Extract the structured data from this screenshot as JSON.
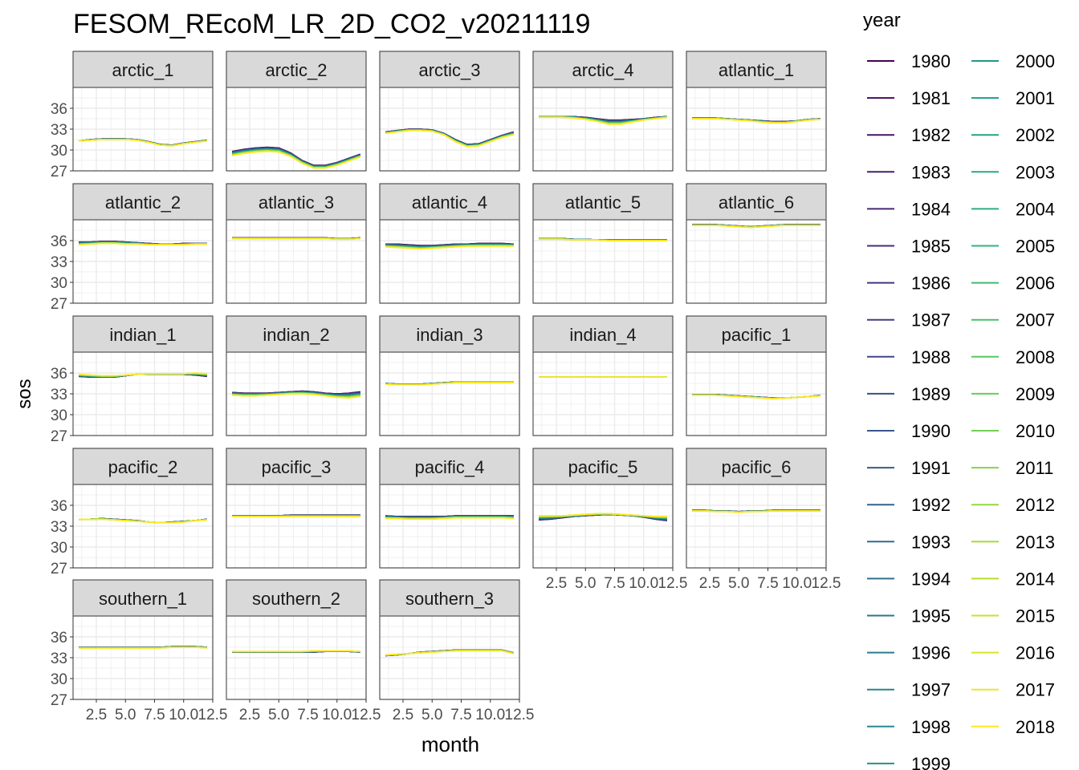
{
  "chart_data": {
    "type": "line",
    "title": "FESOM_REcoM_LR_2D_CO2_v20211119",
    "xlabel": "month",
    "ylabel": "sos",
    "xlim": [
      1,
      12
    ],
    "ylim": [
      27,
      39
    ],
    "x_ticks": [
      "2.5",
      "5.0",
      "7.5",
      "10.0",
      "12.5"
    ],
    "y_ticks": [
      "27",
      "30",
      "33",
      "36"
    ],
    "grid": true,
    "legend": {
      "title": "year",
      "placement": "right",
      "columns": 2,
      "entries": [
        "1980",
        "1981",
        "1982",
        "1983",
        "1984",
        "1985",
        "1986",
        "1987",
        "1988",
        "1989",
        "1990",
        "1991",
        "1992",
        "1993",
        "1994",
        "1995",
        "1996",
        "1997",
        "1998",
        "1999",
        "2000",
        "2001",
        "2002",
        "2003",
        "2004",
        "2005",
        "2006",
        "2007",
        "2008",
        "2009",
        "2010",
        "2011",
        "2012",
        "2013",
        "2014",
        "2015",
        "2016",
        "2017",
        "2018"
      ]
    },
    "colormap": [
      "#440154",
      "#482878",
      "#3e4a89",
      "#31688e",
      "#26828e",
      "#1f9e89",
      "#35b779",
      "#6ece58",
      "#b5de2b",
      "#fde725"
    ],
    "x": [
      1,
      2,
      3,
      4,
      5,
      6,
      7,
      8,
      9,
      10,
      11,
      12
    ],
    "panels": [
      {
        "name": "arctic_1",
        "first_year": [
          31.3,
          31.5,
          31.6,
          31.6,
          31.6,
          31.5,
          31.2,
          30.8,
          30.7,
          31.0,
          31.2,
          31.4
        ],
        "last_year": [
          31.3,
          31.4,
          31.5,
          31.5,
          31.5,
          31.4,
          31.1,
          30.7,
          30.6,
          30.9,
          31.1,
          31.3
        ]
      },
      {
        "name": "arctic_2",
        "first_year": [
          29.8,
          30.1,
          30.3,
          30.4,
          30.3,
          29.6,
          28.5,
          27.8,
          27.8,
          28.2,
          28.8,
          29.4
        ],
        "last_year": [
          29.2,
          29.5,
          29.7,
          29.8,
          29.7,
          29.1,
          28.1,
          27.4,
          27.4,
          27.8,
          28.4,
          29.0
        ]
      },
      {
        "name": "arctic_3",
        "first_year": [
          32.6,
          32.8,
          33.0,
          33.0,
          32.9,
          32.4,
          31.5,
          30.8,
          30.9,
          31.5,
          32.1,
          32.6
        ],
        "last_year": [
          32.4,
          32.6,
          32.8,
          32.8,
          32.7,
          32.2,
          31.2,
          30.5,
          30.6,
          31.2,
          31.8,
          32.2
        ]
      },
      {
        "name": "arctic_4",
        "first_year": [
          34.8,
          34.8,
          34.8,
          34.8,
          34.7,
          34.5,
          34.3,
          34.3,
          34.4,
          34.5,
          34.7,
          34.8
        ],
        "last_year": [
          34.7,
          34.7,
          34.7,
          34.6,
          34.4,
          34.1,
          33.7,
          33.7,
          34.0,
          34.3,
          34.5,
          34.7
        ]
      },
      {
        "name": "atlantic_1",
        "first_year": [
          34.6,
          34.6,
          34.6,
          34.5,
          34.4,
          34.3,
          34.2,
          34.1,
          34.1,
          34.2,
          34.4,
          34.5
        ],
        "last_year": [
          34.5,
          34.5,
          34.5,
          34.4,
          34.3,
          34.2,
          34.0,
          33.9,
          33.9,
          34.1,
          34.3,
          34.4
        ]
      },
      {
        "name": "atlantic_2",
        "first_year": [
          35.8,
          35.8,
          35.9,
          35.9,
          35.8,
          35.7,
          35.6,
          35.5,
          35.5,
          35.6,
          35.6,
          35.6
        ],
        "last_year": [
          35.4,
          35.5,
          35.6,
          35.6,
          35.5,
          35.5,
          35.4,
          35.4,
          35.4,
          35.4,
          35.5,
          35.5
        ]
      },
      {
        "name": "atlantic_3",
        "first_year": [
          36.4,
          36.4,
          36.4,
          36.4,
          36.4,
          36.4,
          36.4,
          36.4,
          36.4,
          36.3,
          36.3,
          36.4
        ],
        "last_year": [
          36.3,
          36.3,
          36.3,
          36.3,
          36.3,
          36.3,
          36.3,
          36.3,
          36.3,
          36.2,
          36.2,
          36.3
        ]
      },
      {
        "name": "atlantic_4",
        "first_year": [
          35.5,
          35.5,
          35.4,
          35.3,
          35.3,
          35.4,
          35.5,
          35.5,
          35.6,
          35.6,
          35.6,
          35.5
        ],
        "last_year": [
          35.1,
          35.0,
          34.9,
          34.8,
          34.9,
          35.0,
          35.1,
          35.2,
          35.2,
          35.2,
          35.2,
          35.2
        ]
      },
      {
        "name": "atlantic_5",
        "first_year": [
          36.3,
          36.3,
          36.3,
          36.2,
          36.2,
          36.1,
          36.1,
          36.1,
          36.1,
          36.1,
          36.1,
          36.1
        ],
        "last_year": [
          36.2,
          36.2,
          36.2,
          36.1,
          36.1,
          36.1,
          36.0,
          36.0,
          36.0,
          36.0,
          36.0,
          36.0
        ]
      },
      {
        "name": "atlantic_6",
        "first_year": [
          38.3,
          38.3,
          38.3,
          38.2,
          38.1,
          38.0,
          38.1,
          38.2,
          38.3,
          38.3,
          38.3,
          38.3
        ],
        "last_year": [
          38.2,
          38.2,
          38.2,
          38.1,
          38.0,
          37.9,
          38.0,
          38.1,
          38.2,
          38.2,
          38.2,
          38.2
        ]
      },
      {
        "name": "indian_1",
        "first_year": [
          35.5,
          35.4,
          35.4,
          35.4,
          35.6,
          35.8,
          35.8,
          35.8,
          35.8,
          35.8,
          35.7,
          35.5
        ],
        "last_year": [
          35.8,
          35.7,
          35.6,
          35.6,
          35.7,
          35.8,
          35.9,
          35.9,
          35.9,
          35.9,
          36.0,
          35.9
        ]
      },
      {
        "name": "indian_2",
        "first_year": [
          33.2,
          33.1,
          33.1,
          33.1,
          33.2,
          33.3,
          33.4,
          33.3,
          33.1,
          33.0,
          33.1,
          33.3
        ],
        "last_year": [
          32.8,
          32.7,
          32.7,
          32.8,
          32.9,
          33.0,
          33.0,
          32.9,
          32.7,
          32.5,
          32.4,
          32.6
        ]
      },
      {
        "name": "indian_3",
        "first_year": [
          34.5,
          34.4,
          34.4,
          34.4,
          34.5,
          34.6,
          34.7,
          34.7,
          34.7,
          34.7,
          34.7,
          34.7
        ],
        "last_year": [
          34.4,
          34.3,
          34.3,
          34.3,
          34.4,
          34.5,
          34.6,
          34.6,
          34.6,
          34.6,
          34.6,
          34.6
        ]
      },
      {
        "name": "indian_4",
        "first_year": [
          35.4,
          35.4,
          35.4,
          35.4,
          35.4,
          35.4,
          35.4,
          35.4,
          35.4,
          35.4,
          35.4,
          35.4
        ],
        "last_year": [
          35.4,
          35.4,
          35.4,
          35.4,
          35.4,
          35.4,
          35.4,
          35.4,
          35.4,
          35.4,
          35.4,
          35.4
        ]
      },
      {
        "name": "pacific_1",
        "first_year": [
          32.9,
          32.9,
          32.9,
          32.8,
          32.7,
          32.6,
          32.5,
          32.4,
          32.4,
          32.5,
          32.6,
          32.8
        ],
        "last_year": [
          32.8,
          32.8,
          32.8,
          32.7,
          32.6,
          32.5,
          32.4,
          32.3,
          32.4,
          32.5,
          32.6,
          32.7
        ]
      },
      {
        "name": "pacific_2",
        "first_year": [
          34.0,
          34.0,
          34.1,
          34.0,
          33.9,
          33.8,
          33.6,
          33.5,
          33.6,
          33.7,
          33.8,
          34.0
        ],
        "last_year": [
          34.0,
          34.0,
          34.0,
          33.9,
          33.8,
          33.7,
          33.6,
          33.5,
          33.5,
          33.6,
          33.8,
          33.9
        ]
      },
      {
        "name": "pacific_3",
        "first_year": [
          34.5,
          34.5,
          34.5,
          34.5,
          34.5,
          34.6,
          34.6,
          34.6,
          34.6,
          34.6,
          34.6,
          34.6
        ],
        "last_year": [
          34.4,
          34.4,
          34.4,
          34.4,
          34.4,
          34.4,
          34.4,
          34.4,
          34.4,
          34.4,
          34.4,
          34.4
        ]
      },
      {
        "name": "pacific_4",
        "first_year": [
          34.5,
          34.4,
          34.4,
          34.4,
          34.4,
          34.4,
          34.5,
          34.5,
          34.5,
          34.5,
          34.5,
          34.5
        ],
        "last_year": [
          34.1,
          34.1,
          34.0,
          34.0,
          34.0,
          34.1,
          34.2,
          34.2,
          34.2,
          34.2,
          34.2,
          34.1
        ]
      },
      {
        "name": "pacific_5",
        "first_year": [
          33.9,
          34.0,
          34.2,
          34.4,
          34.5,
          34.6,
          34.7,
          34.6,
          34.5,
          34.3,
          34.0,
          33.8
        ],
        "last_year": [
          34.5,
          34.5,
          34.5,
          34.6,
          34.7,
          34.8,
          34.8,
          34.7,
          34.6,
          34.5,
          34.4,
          34.4
        ]
      },
      {
        "name": "pacific_6",
        "first_year": [
          35.3,
          35.3,
          35.2,
          35.2,
          35.1,
          35.2,
          35.2,
          35.3,
          35.3,
          35.3,
          35.3,
          35.3
        ],
        "last_year": [
          35.2,
          35.2,
          35.1,
          35.1,
          35.0,
          35.1,
          35.1,
          35.2,
          35.2,
          35.2,
          35.2,
          35.2
        ]
      },
      {
        "name": "southern_1",
        "first_year": [
          34.5,
          34.5,
          34.5,
          34.5,
          34.5,
          34.5,
          34.5,
          34.5,
          34.6,
          34.6,
          34.6,
          34.5
        ],
        "last_year": [
          34.4,
          34.4,
          34.4,
          34.4,
          34.4,
          34.4,
          34.4,
          34.4,
          34.5,
          34.5,
          34.5,
          34.4
        ]
      },
      {
        "name": "southern_2",
        "first_year": [
          33.8,
          33.8,
          33.8,
          33.8,
          33.8,
          33.8,
          33.8,
          33.8,
          33.9,
          33.9,
          33.9,
          33.8
        ],
        "last_year": [
          33.9,
          33.9,
          33.9,
          33.9,
          33.9,
          33.9,
          33.9,
          34.0,
          34.0,
          34.0,
          34.0,
          33.9
        ]
      },
      {
        "name": "southern_3",
        "first_year": [
          33.3,
          33.4,
          33.6,
          33.8,
          33.9,
          34.0,
          34.1,
          34.1,
          34.1,
          34.1,
          34.1,
          33.7
        ],
        "last_year": [
          33.4,
          33.5,
          33.6,
          33.7,
          33.8,
          33.9,
          34.0,
          34.0,
          34.0,
          34.0,
          34.0,
          33.6
        ]
      }
    ]
  }
}
